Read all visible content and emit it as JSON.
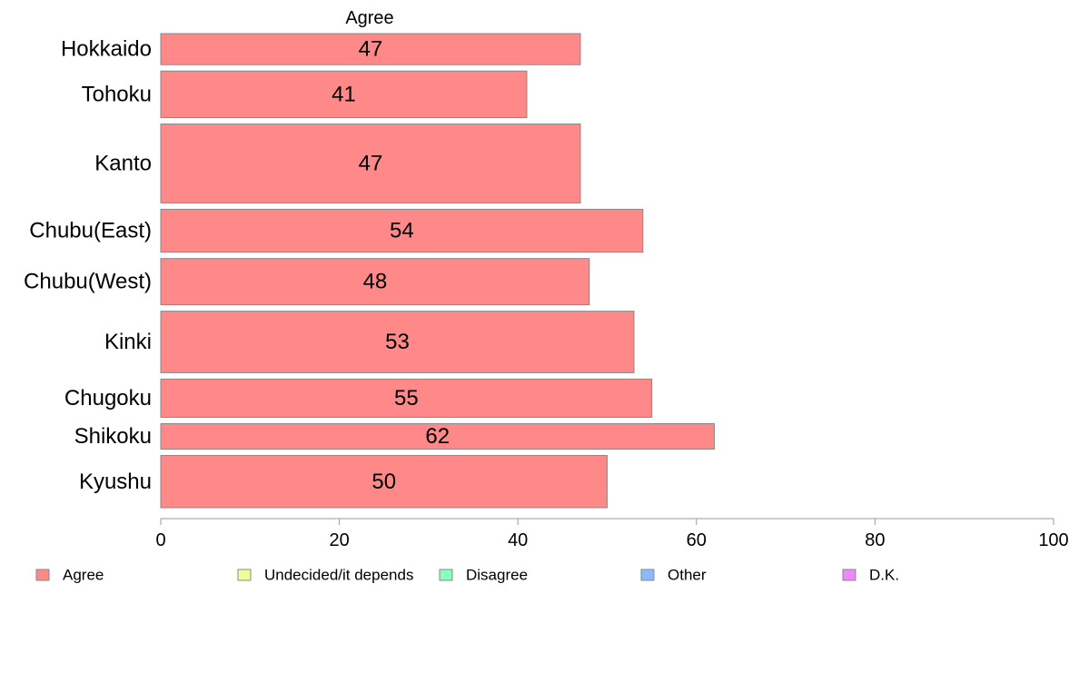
{
  "chart_data": {
    "type": "bar",
    "orientation": "horizontal",
    "title": "Agree",
    "categories": [
      "Hokkaido",
      "Tohoku",
      "Kanto",
      "Chubu(East)",
      "Chubu(West)",
      "Kinki",
      "Chugoku",
      "Shikoku",
      "Kyushu"
    ],
    "values": [
      47,
      41,
      47,
      54,
      48,
      53,
      55,
      62,
      50
    ],
    "relative_bar_widths": [
      1.0,
      1.5,
      2.54,
      1.38,
      1.49,
      1.98,
      1.23,
      0.82,
      1.68
    ],
    "series": [
      {
        "name": "Agree",
        "values": [
          47,
          41,
          47,
          54,
          48,
          53,
          55,
          62,
          50
        ]
      }
    ],
    "xlim": [
      0,
      100
    ],
    "xticks": [
      0,
      20,
      40,
      60,
      80,
      100
    ],
    "xlabel": "",
    "ylabel": "",
    "grid": false,
    "legend_position": "bottom",
    "legend": [
      {
        "label": "Agree",
        "color": "#ff8888"
      },
      {
        "label": "Undecided/it depends",
        "color": "#eeff99"
      },
      {
        "label": "Disagree",
        "color": "#88ffbb"
      },
      {
        "label": "Other",
        "color": "#88bbff"
      },
      {
        "label": "D.K.",
        "color": "#ee88ff"
      }
    ],
    "bar_color": "#ff8888",
    "bar_stroke": "#888888",
    "axis_color": "#999999"
  }
}
